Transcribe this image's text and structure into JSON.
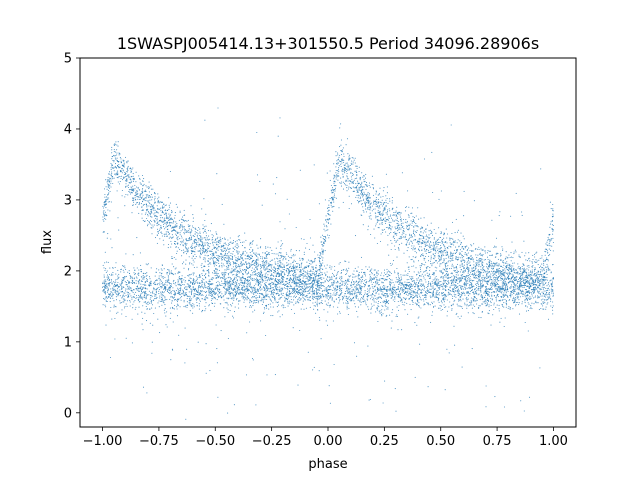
{
  "chart_data": {
    "type": "scatter",
    "title": "1SWASPJ005414.13+301550.5 Period 34096.28906s",
    "xlabel": "phase",
    "ylabel": "flux",
    "xlim": [
      -1.1,
      1.1
    ],
    "ylim": [
      -0.2,
      5.0
    ],
    "x_ticks": [
      -1.0,
      -0.75,
      -0.5,
      -0.25,
      0.0,
      0.25,
      0.5,
      0.75,
      1.0
    ],
    "x_tick_labels": [
      "−1.00",
      "−0.75",
      "−0.50",
      "−0.25",
      "0.00",
      "0.25",
      "0.50",
      "0.75",
      "1.00"
    ],
    "y_ticks": [
      0,
      1,
      2,
      3,
      4,
      5
    ],
    "y_tick_labels": [
      "0",
      "1",
      "2",
      "3",
      "4",
      "5"
    ],
    "grid": false,
    "marker_color": "#1f77b4",
    "series": [
      {
        "phase_range": [
          -1.0,
          1.0
        ],
        "baseline_flux": 1.8,
        "baseline_scatter": 0.15,
        "peak_phases": [
          -1.0,
          0.05,
          1.0
        ],
        "peak_flux": 3.6,
        "decay_to_flux": 1.8
      }
    ]
  }
}
